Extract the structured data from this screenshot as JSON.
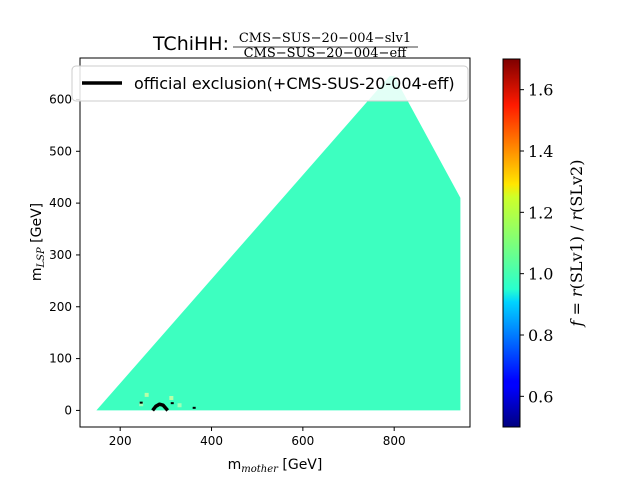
{
  "chart_data": {
    "type": "heatmap",
    "title": "TChiHH:",
    "title_numerator": "CMS−SUS−20−004−slv1",
    "title_denominator": "CMS−SUS−20−004−eff",
    "xlabel": "m_mother [GeV]",
    "xlabel_main": "m",
    "xlabel_sub": "mother",
    "xlabel_unit": " [GeV]",
    "ylabel_main": "m",
    "ylabel_sub": "LSP",
    "ylabel_unit": " [GeV]",
    "xlim": [
      112,
      966
    ],
    "ylim": [
      -32,
      680
    ],
    "xticks": [
      200,
      400,
      600,
      800
    ],
    "yticks": [
      0,
      100,
      200,
      300,
      400,
      500,
      600
    ],
    "xtick_labels": [
      "200",
      "400",
      "600",
      "800"
    ],
    "ytick_labels": [
      "0",
      "100",
      "200",
      "300",
      "400",
      "500",
      "600"
    ],
    "region_value": 1.0,
    "region_color": "#3dffc0",
    "region_polygon": [
      [
        148,
        0
      ],
      [
        790,
        645
      ],
      [
        800,
        645
      ],
      [
        945,
        410
      ],
      [
        945,
        0
      ]
    ],
    "exclusion_curve": {
      "name": "official exclusion(+CMS-SUS-20-004-eff)",
      "color": "#000000",
      "points": [
        [
          271,
          0
        ],
        [
          278,
          8
        ],
        [
          286,
          12
        ],
        [
          294,
          10
        ],
        [
          302,
          2
        ],
        [
          304,
          0
        ]
      ]
    },
    "colorbar": {
      "label": "f = r(SLv1) / r(SLv2)",
      "label_f": "f",
      "label_eq": " = ",
      "label_r1": "r",
      "label_arg1": "(SLv1)",
      "label_div": " / ",
      "label_r2": "r",
      "label_arg2": "(SLv2)",
      "range": [
        0.5,
        1.7
      ],
      "ticks": [
        0.6,
        0.8,
        1.0,
        1.2,
        1.4,
        1.6
      ],
      "tick_labels": [
        "0.6",
        "0.8",
        "1.0",
        "1.2",
        "1.4",
        "1.6"
      ],
      "colormap": "jet"
    },
    "legend": {
      "position": "top-left"
    }
  }
}
